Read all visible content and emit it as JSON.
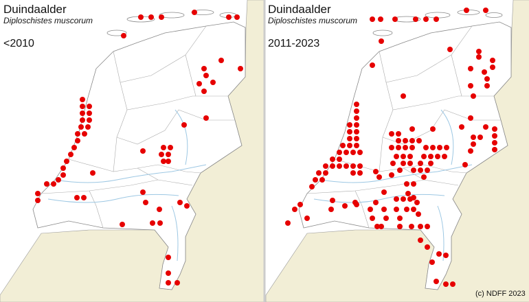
{
  "maps": [
    {
      "title": "Duindaalder",
      "subtitle": "Diploschistes muscorum",
      "period": "<2010"
    },
    {
      "title": "Duindaalder",
      "subtitle": "Diploschistes muscorum",
      "period": "2011-2023"
    }
  ],
  "credit": "(c) NDFF 2023"
}
